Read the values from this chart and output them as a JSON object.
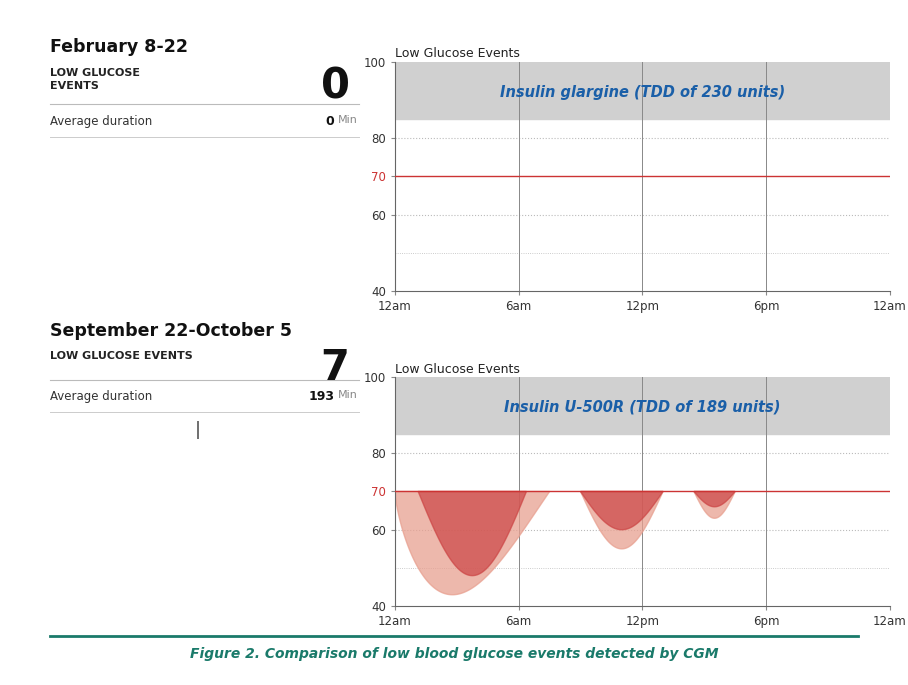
{
  "title": "February 8-22",
  "title2": "September 22-October 5",
  "label_low_glucose": "LOW GLUCOSE\nEVENTS",
  "label_low_glucose2": "LOW GLUCOSE EVENTS",
  "value1": "0",
  "value2": "7",
  "avg_dur_label": "Average duration",
  "avg_dur_val1": "0",
  "avg_dur_val2": "193",
  "avg_dur_unit": "Min",
  "chart1_title": "Insulin glargine (TDD of 230 units)",
  "chart2_title": "Insulin U-500R (TDD of 189 units)",
  "chart_ylabel": "Low Glucose Events",
  "x_ticks": [
    "12am",
    "6am",
    "12pm",
    "6pm",
    "12am"
  ],
  "x_tick_vals": [
    0,
    6,
    12,
    18,
    24
  ],
  "ylim": [
    40,
    100
  ],
  "threshold_line": 70,
  "threshold_color": "#cc3333",
  "grid_color": "#bbbbbb",
  "banner_color": "#d0d0d0",
  "chart_title_color": "#1a5fa8",
  "bg_color": "#ffffff",
  "figure_caption": "Figure 2. Comparison of low blood glucose events detected by CGM",
  "caption_color": "#1a7a6a",
  "dark_red": "#cc4444",
  "light_red": "#e8a090"
}
